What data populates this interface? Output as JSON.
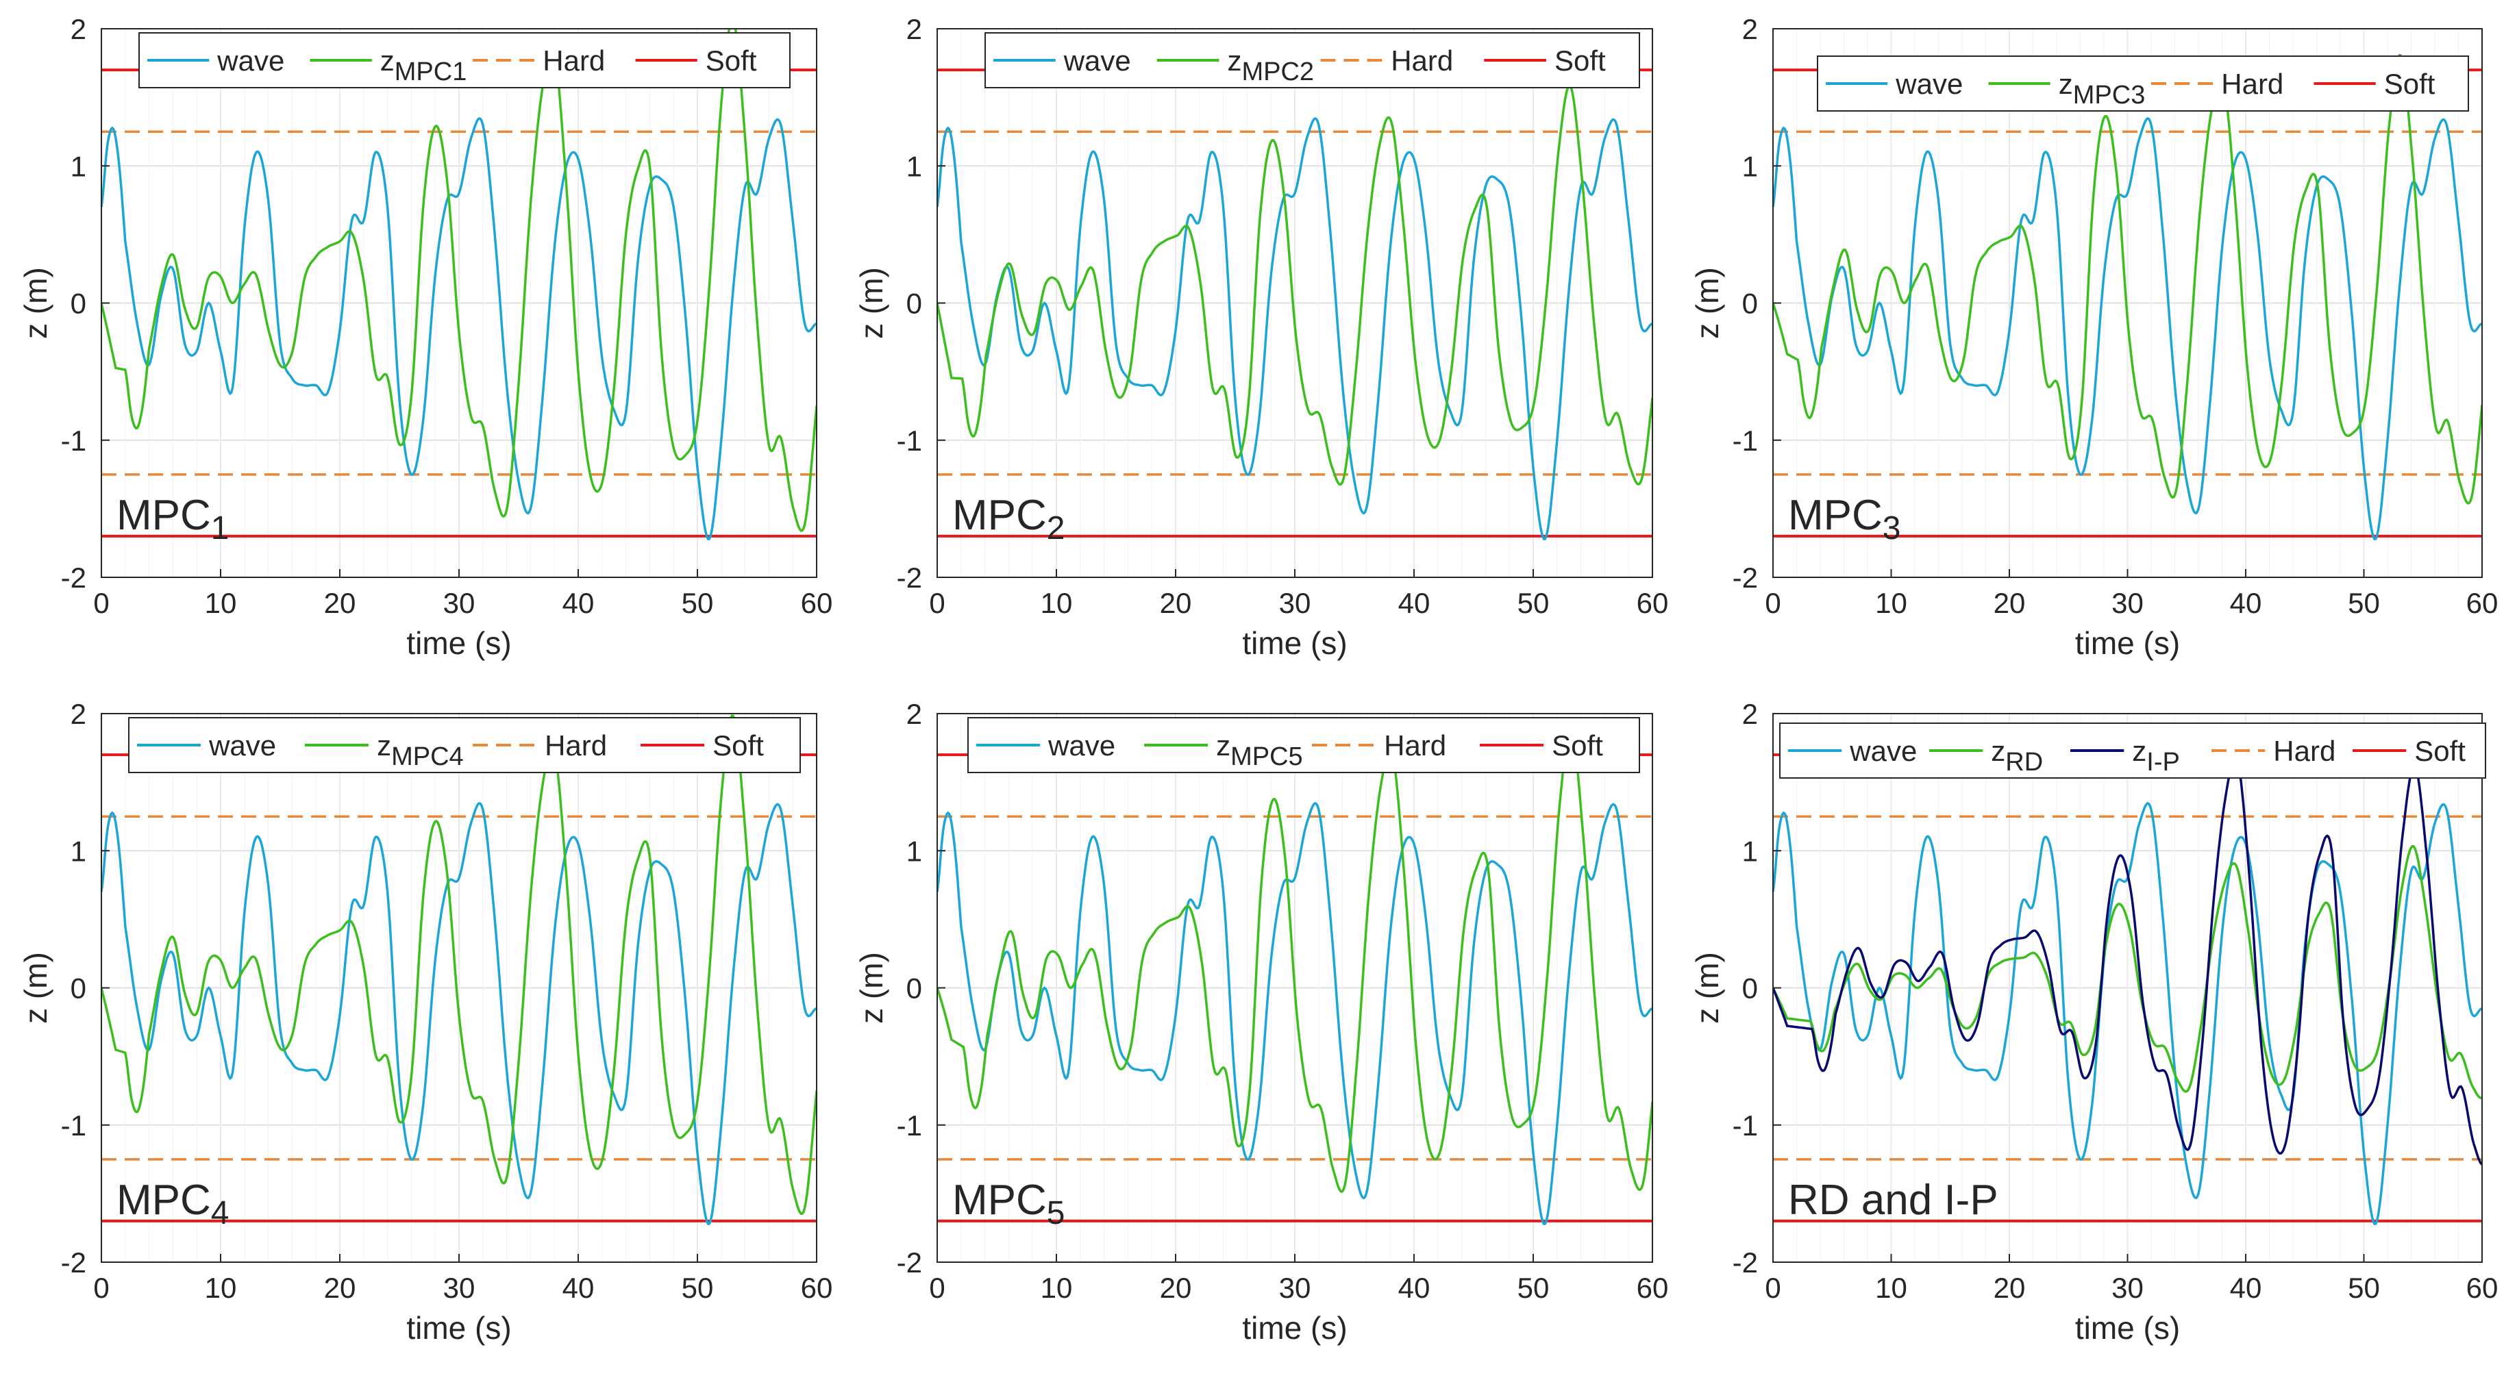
{
  "figure": {
    "colors": {
      "wave": "#1ba6d6",
      "mpc": "#3cbf1e",
      "ip": "#0a0a6e",
      "hard": "#e8883a",
      "soft": "#e8191b",
      "grid": "#e1e1e1",
      "axis": "#262626"
    }
  },
  "chart_data": [
    {
      "type": "line",
      "panel_label": "MPC",
      "panel_label_sub": "1",
      "xlabel": "time (s)",
      "ylabel": "z (m)",
      "xlim": [
        0,
        60
      ],
      "ylim": [
        -2,
        2
      ],
      "xticks": [
        0,
        10,
        20,
        30,
        40,
        50,
        60
      ],
      "yticks": [
        -2,
        -1,
        0,
        1,
        2
      ],
      "grid": true,
      "legend_position": "top",
      "legend": [
        {
          "name": "wave",
          "sub": ""
        },
        {
          "name": "z",
          "sub": "MPC1"
        },
        {
          "name": "Hard",
          "sub": ""
        },
        {
          "name": "Soft",
          "sub": ""
        }
      ],
      "hard_limit": 1.25,
      "soft_limit": 1.7,
      "series": [
        {
          "name": "wave",
          "key": "wave"
        },
        {
          "name": "z",
          "key": "mpc",
          "amp": [
            0.65,
            0.8,
            0.3,
            0.75,
            1.0,
            1.15,
            1.25,
            1.25,
            1.2,
            1.25
          ],
          "lag": 2.0,
          "bias": 0.0
        }
      ]
    },
    {
      "type": "line",
      "panel_label": "MPC",
      "panel_label_sub": "2",
      "xlabel": "time (s)",
      "ylabel": "z (m)",
      "xlim": [
        0,
        60
      ],
      "ylim": [
        -2,
        2
      ],
      "xticks": [
        0,
        10,
        20,
        30,
        40,
        50,
        60
      ],
      "yticks": [
        -2,
        -1,
        0,
        1,
        2
      ],
      "grid": true,
      "legend_position": "top",
      "legend": [
        {
          "name": "wave",
          "sub": ""
        },
        {
          "name": "z",
          "sub": "MPC2"
        },
        {
          "name": "Hard",
          "sub": ""
        },
        {
          "name": "Soft",
          "sub": ""
        }
      ],
      "hard_limit": 1.25,
      "soft_limit": 1.7,
      "series": [
        {
          "name": "wave",
          "key": "wave"
        },
        {
          "name": "z",
          "key": "mpc",
          "amp": [
            0.7,
            0.75,
            0.45,
            0.9,
            1.0,
            0.95,
            0.9,
            0.95,
            0.95,
            0.95
          ],
          "lag": 2.1,
          "bias": -0.05
        }
      ]
    },
    {
      "type": "line",
      "panel_label": "MPC",
      "panel_label_sub": "3",
      "xlabel": "time (s)",
      "ylabel": "z (m)",
      "xlim": [
        0,
        60
      ],
      "ylim": [
        -2,
        2
      ],
      "xticks": [
        0,
        10,
        20,
        30,
        40,
        50,
        60
      ],
      "yticks": [
        -2,
        -1,
        0,
        1,
        2
      ],
      "grid": true,
      "legend_position": "top",
      "legend": [
        {
          "name": "wave",
          "sub": ""
        },
        {
          "name": "z",
          "sub": "MPC3"
        },
        {
          "name": "Hard",
          "sub": ""
        },
        {
          "name": "Soft",
          "sub": ""
        }
      ],
      "hard_limit": 1.25,
      "soft_limit": 1.7,
      "series": [
        {
          "name": "wave",
          "key": "wave"
        },
        {
          "name": "z",
          "key": "mpc",
          "amp": [
            0.45,
            0.9,
            0.4,
            0.8,
            1.1,
            1.05,
            1.1,
            1.05,
            1.05,
            1.1
          ],
          "lag": 2.1,
          "bias": 0.0
        }
      ]
    },
    {
      "type": "line",
      "panel_label": "MPC",
      "panel_label_sub": "4",
      "xlabel": "time (s)",
      "ylabel": "z (m)",
      "xlim": [
        0,
        60
      ],
      "ylim": [
        -2,
        2
      ],
      "xticks": [
        0,
        10,
        20,
        30,
        40,
        50,
        60
      ],
      "yticks": [
        -2,
        -1,
        0,
        1,
        2
      ],
      "grid": true,
      "legend_position": "top",
      "legend": [
        {
          "name": "wave",
          "sub": ""
        },
        {
          "name": "z",
          "sub": "MPC4"
        },
        {
          "name": "Hard",
          "sub": ""
        },
        {
          "name": "Soft",
          "sub": ""
        }
      ],
      "hard_limit": 1.25,
      "soft_limit": 1.7,
      "series": [
        {
          "name": "wave",
          "key": "wave"
        },
        {
          "name": "z",
          "key": "mpc",
          "amp": [
            0.6,
            0.85,
            0.3,
            0.7,
            0.95,
            1.05,
            1.2,
            1.2,
            1.15,
            1.25
          ],
          "lag": 2.0,
          "bias": 0.0
        }
      ]
    },
    {
      "type": "line",
      "panel_label": "MPC",
      "panel_label_sub": "5",
      "xlabel": "time (s)",
      "ylabel": "z (m)",
      "xlim": [
        0,
        60
      ],
      "ylim": [
        -2,
        2
      ],
      "xticks": [
        0,
        10,
        20,
        30,
        40,
        50,
        60
      ],
      "yticks": [
        -2,
        -1,
        0,
        1,
        2
      ],
      "grid": true,
      "legend_position": "top",
      "legend": [
        {
          "name": "wave",
          "sub": ""
        },
        {
          "name": "z",
          "sub": "MPC5"
        },
        {
          "name": "Hard",
          "sub": ""
        },
        {
          "name": "Soft",
          "sub": ""
        }
      ],
      "hard_limit": 1.25,
      "soft_limit": 1.7,
      "series": [
        {
          "name": "wave",
          "key": "wave"
        },
        {
          "name": "z",
          "key": "mpc",
          "amp": [
            0.45,
            0.95,
            0.4,
            0.85,
            1.1,
            1.1,
            1.15,
            1.1,
            1.1,
            1.1
          ],
          "lag": 2.2,
          "bias": 0.0
        }
      ]
    },
    {
      "type": "line",
      "panel_label": "RD and I-P",
      "panel_label_sub": "",
      "xlabel": "time (s)",
      "ylabel": "z (m)",
      "xlim": [
        0,
        60
      ],
      "ylim": [
        -2,
        2
      ],
      "xticks": [
        0,
        10,
        20,
        30,
        40,
        50,
        60
      ],
      "yticks": [
        -2,
        -1,
        0,
        1,
        2
      ],
      "grid": true,
      "legend_position": "top",
      "legend": [
        {
          "name": "wave",
          "sub": ""
        },
        {
          "name": "z",
          "sub": "RD"
        },
        {
          "name": "z",
          "sub": "I-P"
        },
        {
          "name": "Hard",
          "sub": ""
        },
        {
          "name": "Soft",
          "sub": ""
        }
      ],
      "hard_limit": 1.25,
      "soft_limit": 1.7,
      "series": [
        {
          "name": "wave",
          "key": "wave"
        },
        {
          "name": "z",
          "key": "mpc",
          "amp": [
            0.3,
            0.4,
            0.2,
            0.35,
            0.45,
            0.55,
            0.6,
            0.7,
            0.6,
            0.6
          ],
          "lag": 3.2,
          "bias": 0.0
        },
        {
          "name": "z",
          "key": "ip",
          "amp": [
            0.45,
            0.55,
            0.3,
            0.5,
            0.65,
            0.85,
            1.1,
            1.2,
            0.9,
            1.0
          ],
          "lag": 3.3,
          "bias": 0.05
        }
      ]
    }
  ],
  "wave_data": {
    "x": [
      0,
      0.5,
      1,
      1.5,
      2,
      3,
      4,
      5,
      6,
      7,
      8,
      9,
      10,
      11,
      12,
      13,
      14,
      15,
      16,
      17,
      18,
      19,
      20,
      21,
      22,
      23,
      24,
      25,
      26,
      27,
      28,
      29,
      30,
      31,
      32,
      33,
      34,
      35,
      36,
      37,
      38,
      39,
      40,
      41,
      42,
      43,
      44,
      45,
      46,
      47,
      48,
      49,
      50,
      51,
      52,
      53,
      54,
      55,
      56,
      57,
      58,
      59,
      60
    ],
    "y": [
      0.7,
      1.15,
      1.27,
      1.0,
      0.45,
      -0.15,
      -0.45,
      0.05,
      0.25,
      -0.3,
      -0.35,
      0.0,
      -0.35,
      -0.62,
      0.55,
      1.1,
      0.75,
      -0.3,
      -0.55,
      -0.6,
      -0.6,
      -0.65,
      -0.2,
      0.6,
      0.6,
      1.1,
      0.7,
      -0.7,
      -1.25,
      -0.85,
      0.2,
      0.75,
      0.8,
      1.2,
      1.3,
      0.5,
      -0.6,
      -1.3,
      -1.5,
      -0.7,
      0.4,
      1.0,
      1.05,
      0.5,
      -0.4,
      -0.78,
      -0.8,
      0.3,
      0.85,
      0.9,
      0.7,
      -0.1,
      -1.2,
      -1.72,
      -1.0,
      0.1,
      0.85,
      0.8,
      1.2,
      1.3,
      0.6,
      -0.15,
      -0.15
    ]
  }
}
